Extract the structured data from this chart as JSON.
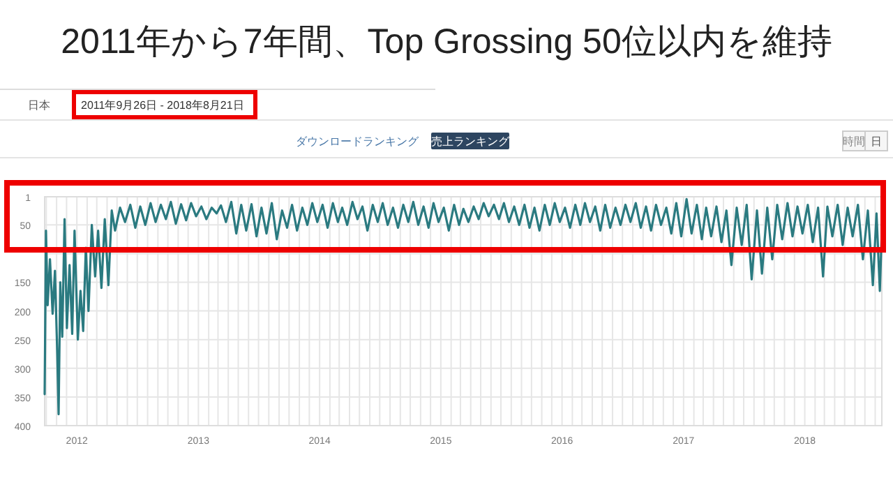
{
  "chart_data": {
    "type": "line",
    "title": "2011年から7年間、Top Grossing 50位以内を維持",
    "subtitle": "2011年9月26日 - 2018年8月21日",
    "annotations": [
      "日本",
      "ダウンロードランキング",
      "売上ランキング",
      "時間",
      "日"
    ],
    "xlim": [
      "2011-09-26",
      "2018-08-21"
    ],
    "ylim": [
      400,
      1
    ],
    "yticks": [
      1,
      50,
      {
        "value": 100,
        "label": null
      },
      150,
      200,
      250,
      300,
      350,
      400
    ],
    "xticks": [
      {
        "value": "2011-10",
        "label": null
      },
      {
        "value": "2011-11",
        "label": null
      },
      {
        "value": "2011-12",
        "label": null
      },
      {
        "value": "2012-01",
        "label": "2012"
      },
      {
        "value": "2012-02",
        "label": null
      },
      {
        "value": "2012-03",
        "label": null
      },
      {
        "value": "2012-04",
        "label": null
      },
      {
        "value": "2012-05",
        "label": null
      },
      {
        "value": "2012-06",
        "label": null
      },
      {
        "value": "2012-07",
        "label": null
      },
      {
        "value": "2012-08",
        "label": null
      },
      {
        "value": "2012-09",
        "label": null
      },
      {
        "value": "2012-10",
        "label": null
      },
      {
        "value": "2012-11",
        "label": null
      },
      {
        "value": "2012-12",
        "label": null
      },
      {
        "value": "2013-01",
        "label": "2013"
      },
      {
        "value": "2013-02",
        "label": null
      },
      {
        "value": "2013-03",
        "label": null
      },
      {
        "value": "2013-04",
        "label": null
      },
      {
        "value": "2013-05",
        "label": null
      },
      {
        "value": "2013-06",
        "label": null
      },
      {
        "value": "2013-07",
        "label": null
      },
      {
        "value": "2013-08",
        "label": null
      },
      {
        "value": "2013-09",
        "label": null
      },
      {
        "value": "2013-10",
        "label": null
      },
      {
        "value": "2013-11",
        "label": null
      },
      {
        "value": "2013-12",
        "label": null
      },
      {
        "value": "2014-01",
        "label": "2014"
      },
      {
        "value": "2014-02",
        "label": null
      },
      {
        "value": "2014-03",
        "label": null
      },
      {
        "value": "2014-04",
        "label": null
      },
      {
        "value": "2014-05",
        "label": null
      },
      {
        "value": "2014-06",
        "label": null
      },
      {
        "value": "2014-07",
        "label": null
      },
      {
        "value": "2014-08",
        "label": null
      },
      {
        "value": "2014-09",
        "label": null
      },
      {
        "value": "2014-10",
        "label": null
      },
      {
        "value": "2014-11",
        "label": null
      },
      {
        "value": "2014-12",
        "label": null
      },
      {
        "value": "2015-01",
        "label": "2015"
      },
      {
        "value": "2015-02",
        "label": null
      },
      {
        "value": "2015-03",
        "label": null
      },
      {
        "value": "2015-04",
        "label": null
      },
      {
        "value": "2015-05",
        "label": null
      },
      {
        "value": "2015-06",
        "label": null
      },
      {
        "value": "2015-07",
        "label": null
      },
      {
        "value": "2015-08",
        "label": null
      },
      {
        "value": "2015-09",
        "label": null
      },
      {
        "value": "2015-10",
        "label": null
      },
      {
        "value": "2015-11",
        "label": null
      },
      {
        "value": "2015-12",
        "label": null
      },
      {
        "value": "2016-01",
        "label": "2016"
      },
      {
        "value": "2016-02",
        "label": null
      },
      {
        "value": "2016-03",
        "label": null
      },
      {
        "value": "2016-04",
        "label": null
      },
      {
        "value": "2016-05",
        "label": null
      },
      {
        "value": "2016-06",
        "label": null
      },
      {
        "value": "2016-07",
        "label": null
      },
      {
        "value": "2016-08",
        "label": null
      },
      {
        "value": "2016-09",
        "label": null
      },
      {
        "value": "2016-10",
        "label": null
      },
      {
        "value": "2016-11",
        "label": null
      },
      {
        "value": "2016-12",
        "label": null
      },
      {
        "value": "2017-01",
        "label": "2017"
      },
      {
        "value": "2017-02",
        "label": null
      },
      {
        "value": "2017-03",
        "label": null
      },
      {
        "value": "2017-04",
        "label": null
      },
      {
        "value": "2017-05",
        "label": null
      },
      {
        "value": "2017-06",
        "label": null
      },
      {
        "value": "2017-07",
        "label": null
      },
      {
        "value": "2017-08",
        "label": null
      },
      {
        "value": "2017-09",
        "label": null
      },
      {
        "value": "2017-10",
        "label": null
      },
      {
        "value": "2017-11",
        "label": null
      },
      {
        "value": "2017-12",
        "label": null
      },
      {
        "value": "2018-01",
        "label": "2018"
      },
      {
        "value": "2018-02",
        "label": null
      },
      {
        "value": "2018-03",
        "label": null
      },
      {
        "value": "2018-04",
        "label": null
      },
      {
        "value": "2018-05",
        "label": null
      },
      {
        "value": "2018-06",
        "label": null
      },
      {
        "value": "2018-07",
        "label": null
      },
      {
        "value": "2018-08",
        "label": null
      }
    ],
    "grid": true,
    "x": [
      "2011-09-26",
      "2011-09-30",
      "2011-10-05",
      "2011-10-12",
      "2011-10-20",
      "2011-10-27",
      "2011-11-03",
      "2011-11-07",
      "2011-11-12",
      "2011-11-18",
      "2011-11-25",
      "2011-12-02",
      "2011-12-10",
      "2011-12-18",
      "2011-12-25",
      "2012-01-04",
      "2012-01-12",
      "2012-01-20",
      "2012-01-28",
      "2012-02-05",
      "2012-02-15",
      "2012-02-25",
      "2012-03-05",
      "2012-03-15",
      "2012-03-25",
      "2012-04-05",
      "2012-04-15",
      "2012-04-25",
      "2012-05-10",
      "2012-05-25",
      "2012-06-10",
      "2012-06-25",
      "2012-07-10",
      "2012-07-25",
      "2012-08-10",
      "2012-08-25",
      "2012-09-10",
      "2012-09-25",
      "2012-10-10",
      "2012-10-25",
      "2012-11-10",
      "2012-11-25",
      "2012-12-10",
      "2012-12-25",
      "2013-01-10",
      "2013-01-25",
      "2013-02-10",
      "2013-02-25",
      "2013-03-10",
      "2013-03-25",
      "2013-04-10",
      "2013-04-25",
      "2013-05-10",
      "2013-05-25",
      "2013-06-10",
      "2013-06-25",
      "2013-07-10",
      "2013-07-25",
      "2013-08-10",
      "2013-08-25",
      "2013-09-10",
      "2013-09-25",
      "2013-10-10",
      "2013-10-25",
      "2013-11-10",
      "2013-11-25",
      "2013-12-10",
      "2013-12-25",
      "2014-01-10",
      "2014-01-25",
      "2014-02-10",
      "2014-02-25",
      "2014-03-10",
      "2014-03-25",
      "2014-04-10",
      "2014-04-25",
      "2014-05-10",
      "2014-05-25",
      "2014-06-10",
      "2014-06-25",
      "2014-07-10",
      "2014-07-25",
      "2014-08-10",
      "2014-08-25",
      "2014-09-10",
      "2014-09-25",
      "2014-10-10",
      "2014-10-25",
      "2014-11-10",
      "2014-11-25",
      "2014-12-10",
      "2014-12-25",
      "2015-01-10",
      "2015-01-25",
      "2015-02-10",
      "2015-02-25",
      "2015-03-10",
      "2015-03-25",
      "2015-04-10",
      "2015-04-25",
      "2015-05-10",
      "2015-05-25",
      "2015-06-10",
      "2015-06-25",
      "2015-07-10",
      "2015-07-25",
      "2015-08-10",
      "2015-08-25",
      "2015-09-10",
      "2015-09-25",
      "2015-10-10",
      "2015-10-25",
      "2015-11-10",
      "2015-11-25",
      "2015-12-10",
      "2015-12-25",
      "2016-01-10",
      "2016-01-25",
      "2016-02-10",
      "2016-02-25",
      "2016-03-10",
      "2016-03-25",
      "2016-04-10",
      "2016-04-25",
      "2016-05-10",
      "2016-05-25",
      "2016-06-10",
      "2016-06-25",
      "2016-07-10",
      "2016-07-25",
      "2016-08-10",
      "2016-08-25",
      "2016-09-10",
      "2016-09-25",
      "2016-10-10",
      "2016-10-25",
      "2016-11-10",
      "2016-11-25",
      "2016-12-10",
      "2016-12-25",
      "2017-01-10",
      "2017-01-25",
      "2017-02-10",
      "2017-02-25",
      "2017-03-10",
      "2017-03-25",
      "2017-04-10",
      "2017-04-25",
      "2017-05-10",
      "2017-05-25",
      "2017-06-10",
      "2017-06-25",
      "2017-07-10",
      "2017-07-25",
      "2017-08-10",
      "2017-08-25",
      "2017-09-10",
      "2017-09-25",
      "2017-10-10",
      "2017-10-25",
      "2017-11-10",
      "2017-11-25",
      "2017-12-10",
      "2017-12-25",
      "2018-01-10",
      "2018-01-25",
      "2018-02-10",
      "2018-02-25",
      "2018-03-10",
      "2018-03-25",
      "2018-04-10",
      "2018-04-25",
      "2018-05-10",
      "2018-05-25",
      "2018-06-10",
      "2018-06-25",
      "2018-07-10",
      "2018-07-25",
      "2018-08-05",
      "2018-08-15",
      "2018-08-21"
    ],
    "series": [
      {
        "color": "#2a7a80",
        "values": [
          345,
          60,
          190,
          110,
          205,
          130,
          275,
          380,
          150,
          245,
          40,
          230,
          120,
          240,
          60,
          250,
          165,
          235,
          90,
          200,
          50,
          140,
          60,
          160,
          40,
          155,
          25,
          60,
          20,
          45,
          15,
          55,
          18,
          50,
          12,
          45,
          15,
          40,
          10,
          48,
          14,
          42,
          12,
          35,
          18,
          40,
          20,
          30,
          16,
          45,
          10,
          65,
          15,
          60,
          14,
          70,
          20,
          65,
          12,
          75,
          25,
          55,
          15,
          60,
          20,
          50,
          12,
          45,
          15,
          55,
          12,
          45,
          20,
          50,
          10,
          40,
          18,
          60,
          15,
          45,
          12,
          50,
          20,
          55,
          15,
          45,
          10,
          50,
          18,
          55,
          12,
          45,
          20,
          60,
          15,
          50,
          22,
          45,
          18,
          40,
          12,
          35,
          15,
          40,
          12,
          45,
          18,
          50,
          15,
          55,
          20,
          60,
          15,
          50,
          12,
          45,
          20,
          55,
          15,
          50,
          12,
          45,
          18,
          60,
          15,
          55,
          20,
          50,
          15,
          45,
          12,
          55,
          18,
          60,
          15,
          50,
          20,
          65,
          12,
          70,
          5,
          65,
          15,
          75,
          20,
          70,
          18,
          80,
          25,
          120,
          20,
          85,
          15,
          145,
          25,
          135,
          20,
          110,
          15,
          75,
          12,
          70,
          18,
          65,
          15,
          80,
          20,
          140,
          18,
          70,
          15,
          85,
          20,
          70,
          15,
          110,
          25,
          155,
          30,
          165,
          60
        ]
      }
    ]
  }
}
